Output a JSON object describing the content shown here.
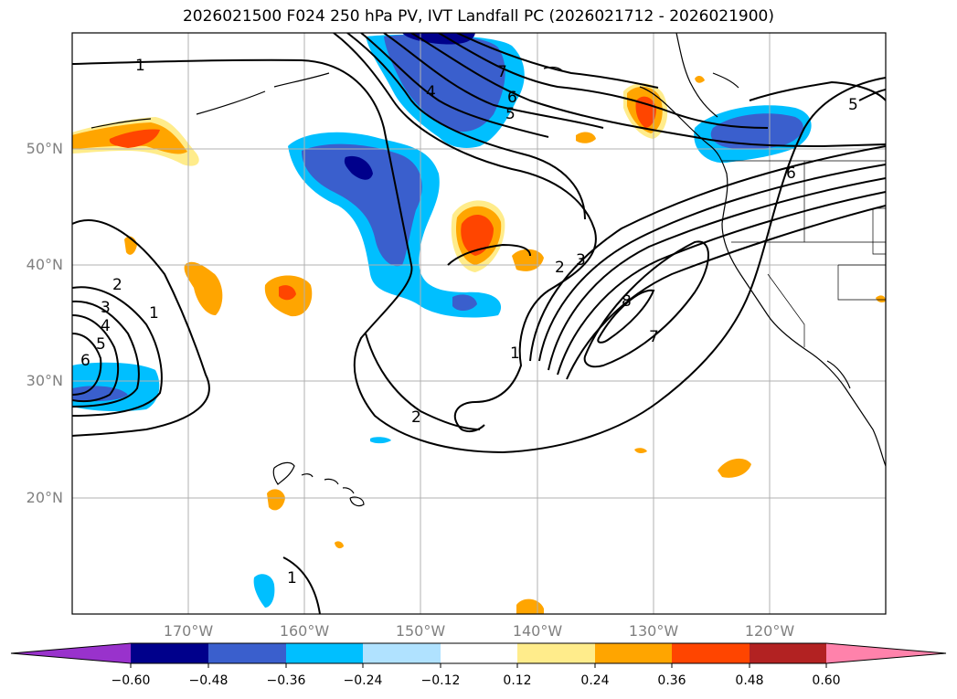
{
  "title": "2026021500 F024 250 hPa PV, IVT Landfall PC (2026021712 - 2026021900)",
  "lat_labels": [
    "50°N",
    "40°N",
    "30°N",
    "20°N"
  ],
  "lon_labels": [
    "170°W",
    "160°W",
    "150°W",
    "140°W",
    "130°W",
    "120°W"
  ],
  "colorbar": {
    "ticks": [
      "−0.60",
      "−0.48",
      "−0.36",
      "−0.24",
      "−0.12",
      "0.12",
      "0.24",
      "0.36",
      "0.48",
      "0.60"
    ],
    "colors": [
      "#9932cc",
      "#00008b",
      "#3a5fcd",
      "#00bfff",
      "#b0e2ff",
      "#ffffff",
      "#ffec8b",
      "#ffa500",
      "#ff4500",
      "#b22222",
      "#ff82ab"
    ]
  },
  "contour_labels": {
    "c1a": "1",
    "c1b": "1",
    "c1c": "1",
    "c1d": "1",
    "c2a": "2",
    "c2b": "2",
    "c2c": "2",
    "c3a": "3",
    "c3b": "3",
    "c4a": "4",
    "c4b": "4",
    "c5a": "5",
    "c5b": "5",
    "c5c": "5",
    "c6a": "6",
    "c6b": "6",
    "c6c": "6",
    "c7a": "7",
    "c7b": "7",
    "c8": "8"
  }
}
